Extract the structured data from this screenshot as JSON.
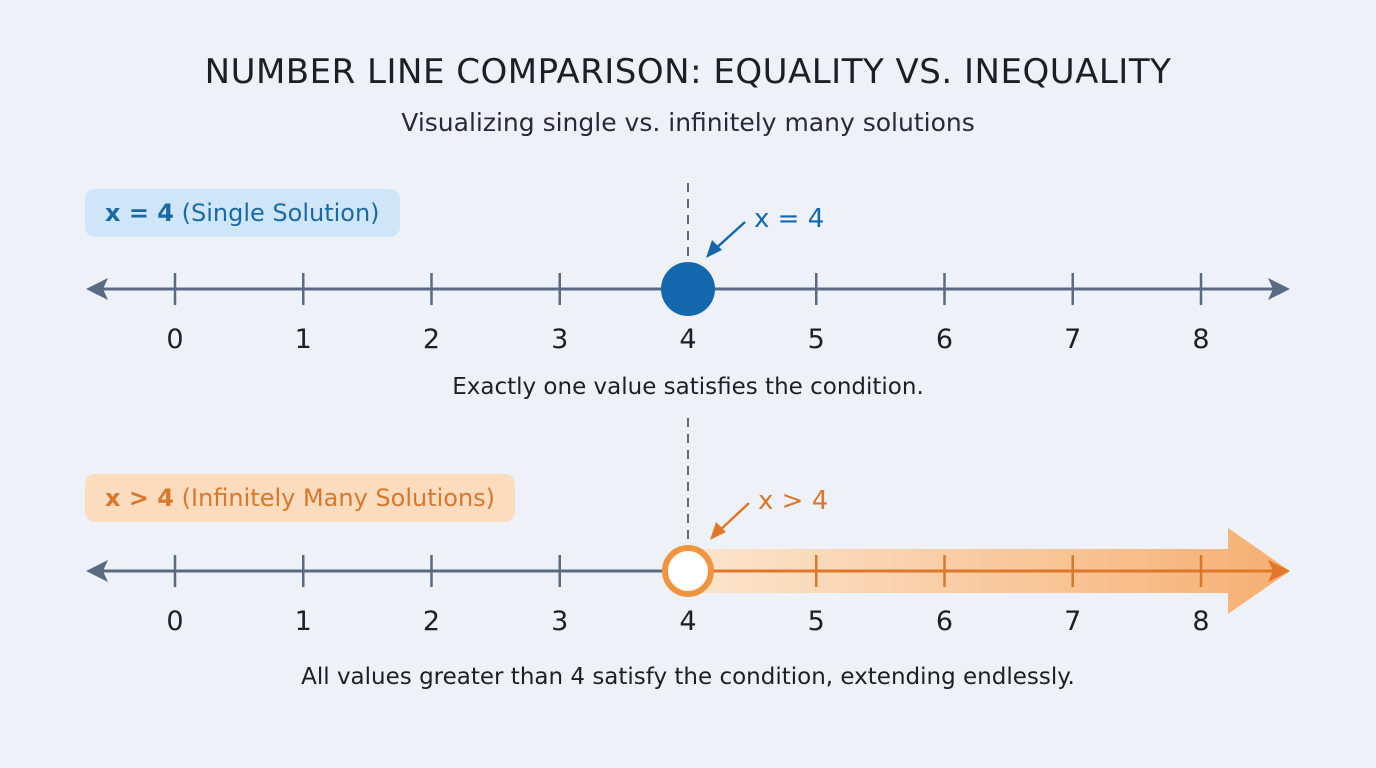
{
  "title": "NUMBER LINE COMPARISON: EQUALITY VS. INEQUALITY",
  "subtitle": "Visualizing single vs. infinitely many solutions",
  "colors": {
    "equality": "#1467ad",
    "inequality": "#f0943f",
    "axis": "#5a6a80",
    "background": "#eef2f8"
  },
  "equality": {
    "badge_bold": "x = 4",
    "badge_rest": " (Single Solution)",
    "annotation": "x = 4",
    "point": 4,
    "point_style": "closed",
    "caption": "Exactly one value satisfies the condition."
  },
  "inequality": {
    "badge_bold": "x > 4",
    "badge_rest": " (Infinitely Many Solutions)",
    "annotation": "x > 4",
    "point": 4,
    "point_style": "open",
    "shaded_direction": "right",
    "caption": "All values greater than 4 satisfy the condition, extending endlessly."
  },
  "ticks": [
    "0",
    "1",
    "2",
    "3",
    "4",
    "5",
    "6",
    "7",
    "8"
  ]
}
